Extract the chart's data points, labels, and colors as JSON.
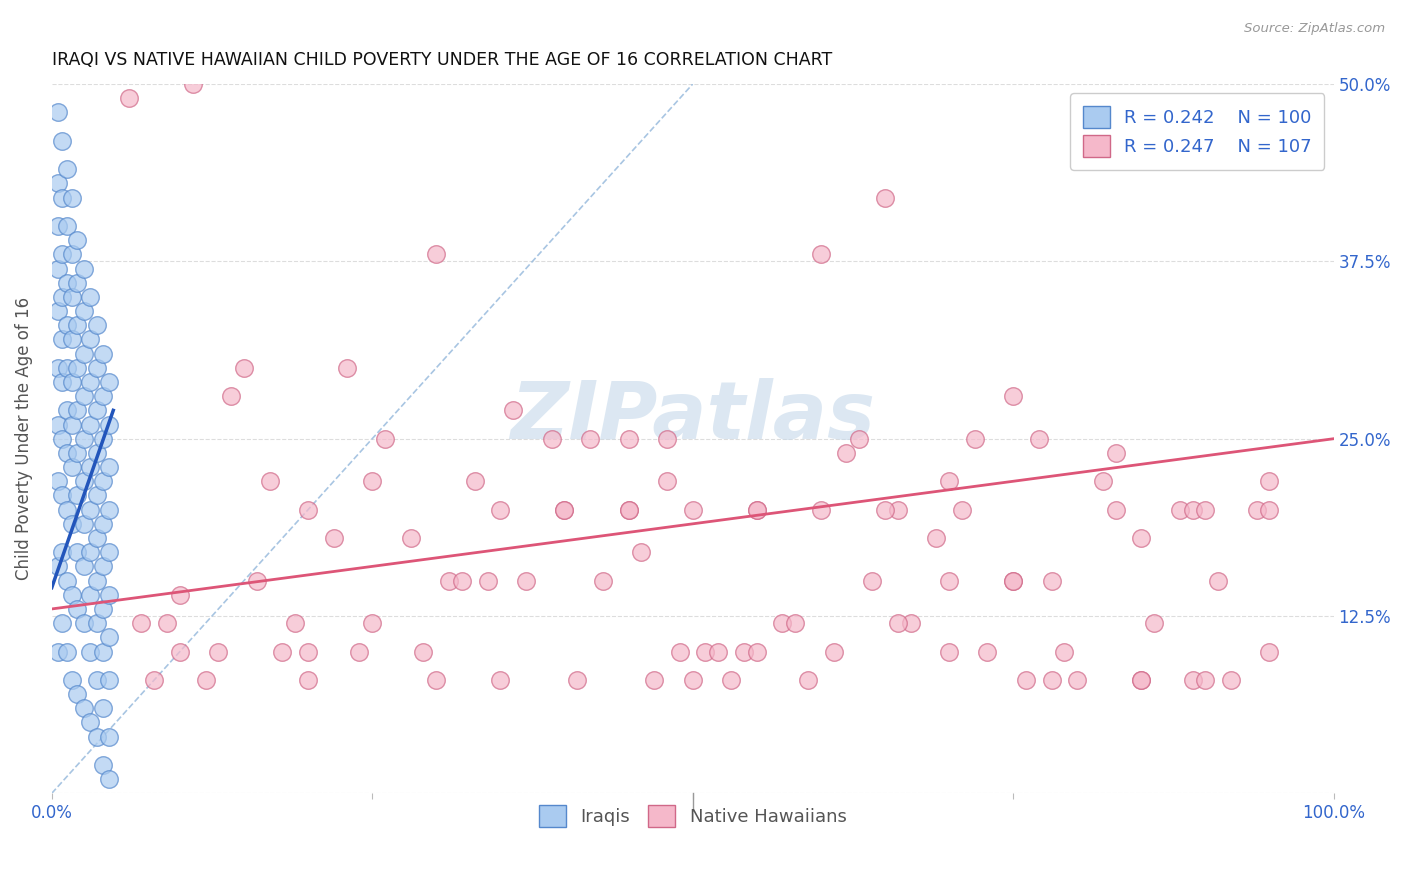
{
  "title": "IRAQI VS NATIVE HAWAIIAN CHILD POVERTY UNDER THE AGE OF 16 CORRELATION CHART",
  "source": "Source: ZipAtlas.com",
  "ylabel": "Child Poverty Under the Age of 16",
  "xlim": [
    0.0,
    1.0
  ],
  "ylim": [
    0.0,
    0.5
  ],
  "ytick_positions": [
    0.0,
    0.125,
    0.25,
    0.375,
    0.5
  ],
  "yticklabels_right": [
    "",
    "12.5%",
    "25.0%",
    "37.5%",
    "50.0%"
  ],
  "iraqis_color": "#aacbf0",
  "iraqis_edge": "#5588cc",
  "hawaiians_color": "#f5b8ca",
  "hawaiians_edge": "#d06888",
  "iraqis_line_color": "#2255bb",
  "hawaiians_line_color": "#dd5577",
  "diagonal_color": "#99bbdd",
  "watermark_color": "#c5d8ea",
  "legend_iraqis_R": "0.242",
  "legend_iraqis_N": "100",
  "legend_hawaiians_R": "0.247",
  "legend_hawaiians_N": "107",
  "title_color": "#111111",
  "axis_label_color": "#555555",
  "tick_color": "#3366cc",
  "grid_color": "#dddddd",
  "iraqis_x": [
    0.005,
    0.005,
    0.005,
    0.005,
    0.005,
    0.005,
    0.005,
    0.005,
    0.005,
    0.005,
    0.008,
    0.008,
    0.008,
    0.008,
    0.008,
    0.008,
    0.008,
    0.008,
    0.008,
    0.008,
    0.012,
    0.012,
    0.012,
    0.012,
    0.012,
    0.012,
    0.012,
    0.012,
    0.012,
    0.012,
    0.016,
    0.016,
    0.016,
    0.016,
    0.016,
    0.016,
    0.016,
    0.016,
    0.016,
    0.016,
    0.02,
    0.02,
    0.02,
    0.02,
    0.02,
    0.02,
    0.02,
    0.02,
    0.02,
    0.02,
    0.025,
    0.025,
    0.025,
    0.025,
    0.025,
    0.025,
    0.025,
    0.025,
    0.025,
    0.025,
    0.03,
    0.03,
    0.03,
    0.03,
    0.03,
    0.03,
    0.03,
    0.03,
    0.03,
    0.03,
    0.035,
    0.035,
    0.035,
    0.035,
    0.035,
    0.035,
    0.035,
    0.035,
    0.035,
    0.035,
    0.04,
    0.04,
    0.04,
    0.04,
    0.04,
    0.04,
    0.04,
    0.04,
    0.04,
    0.04,
    0.045,
    0.045,
    0.045,
    0.045,
    0.045,
    0.045,
    0.045,
    0.045,
    0.045,
    0.045
  ],
  "iraqis_y": [
    0.48,
    0.43,
    0.4,
    0.37,
    0.34,
    0.3,
    0.26,
    0.22,
    0.16,
    0.1,
    0.46,
    0.42,
    0.38,
    0.35,
    0.32,
    0.29,
    0.25,
    0.21,
    0.17,
    0.12,
    0.44,
    0.4,
    0.36,
    0.33,
    0.3,
    0.27,
    0.24,
    0.2,
    0.15,
    0.1,
    0.42,
    0.38,
    0.35,
    0.32,
    0.29,
    0.26,
    0.23,
    0.19,
    0.14,
    0.08,
    0.39,
    0.36,
    0.33,
    0.3,
    0.27,
    0.24,
    0.21,
    0.17,
    0.13,
    0.07,
    0.37,
    0.34,
    0.31,
    0.28,
    0.25,
    0.22,
    0.19,
    0.16,
    0.12,
    0.06,
    0.35,
    0.32,
    0.29,
    0.26,
    0.23,
    0.2,
    0.17,
    0.14,
    0.1,
    0.05,
    0.33,
    0.3,
    0.27,
    0.24,
    0.21,
    0.18,
    0.15,
    0.12,
    0.08,
    0.04,
    0.31,
    0.28,
    0.25,
    0.22,
    0.19,
    0.16,
    0.13,
    0.1,
    0.06,
    0.02,
    0.29,
    0.26,
    0.23,
    0.2,
    0.17,
    0.14,
    0.11,
    0.08,
    0.04,
    0.01
  ],
  "hawaiians_x": [
    0.06,
    0.09,
    0.11,
    0.14,
    0.17,
    0.2,
    0.23,
    0.26,
    0.3,
    0.33,
    0.36,
    0.39,
    0.42,
    0.45,
    0.48,
    0.51,
    0.54,
    0.57,
    0.6,
    0.63,
    0.66,
    0.69,
    0.72,
    0.75,
    0.78,
    0.82,
    0.85,
    0.88,
    0.91,
    0.94,
    0.07,
    0.1,
    0.13,
    0.16,
    0.19,
    0.22,
    0.25,
    0.28,
    0.31,
    0.34,
    0.37,
    0.4,
    0.43,
    0.46,
    0.49,
    0.52,
    0.55,
    0.58,
    0.61,
    0.64,
    0.67,
    0.7,
    0.73,
    0.76,
    0.79,
    0.83,
    0.86,
    0.89,
    0.92,
    0.95,
    0.08,
    0.12,
    0.18,
    0.24,
    0.29,
    0.35,
    0.41,
    0.47,
    0.53,
    0.59,
    0.65,
    0.71,
    0.77,
    0.83,
    0.89,
    0.95,
    0.15,
    0.25,
    0.35,
    0.45,
    0.55,
    0.65,
    0.75,
    0.85,
    0.5,
    0.6,
    0.7,
    0.8,
    0.9,
    0.4,
    0.2,
    0.3,
    0.5,
    0.7,
    0.9,
    0.1,
    0.2,
    0.48,
    0.62,
    0.75,
    0.85,
    0.55,
    0.45,
    0.32,
    0.78,
    0.66,
    0.95
  ],
  "hawaiians_y": [
    0.49,
    0.12,
    0.5,
    0.28,
    0.22,
    0.2,
    0.3,
    0.25,
    0.38,
    0.22,
    0.27,
    0.25,
    0.25,
    0.25,
    0.22,
    0.1,
    0.1,
    0.12,
    0.38,
    0.25,
    0.2,
    0.18,
    0.25,
    0.28,
    0.15,
    0.22,
    0.18,
    0.2,
    0.15,
    0.2,
    0.12,
    0.1,
    0.1,
    0.15,
    0.12,
    0.18,
    0.12,
    0.18,
    0.15,
    0.15,
    0.15,
    0.2,
    0.15,
    0.17,
    0.1,
    0.1,
    0.1,
    0.12,
    0.1,
    0.15,
    0.12,
    0.1,
    0.1,
    0.08,
    0.1,
    0.2,
    0.12,
    0.08,
    0.08,
    0.1,
    0.08,
    0.08,
    0.1,
    0.1,
    0.1,
    0.08,
    0.08,
    0.08,
    0.08,
    0.08,
    0.42,
    0.2,
    0.25,
    0.24,
    0.2,
    0.22,
    0.3,
    0.22,
    0.2,
    0.2,
    0.2,
    0.2,
    0.15,
    0.08,
    0.2,
    0.2,
    0.15,
    0.08,
    0.2,
    0.2,
    0.08,
    0.08,
    0.08,
    0.22,
    0.08,
    0.14,
    0.1,
    0.25,
    0.24,
    0.15,
    0.08,
    0.2,
    0.2,
    0.15,
    0.08,
    0.12,
    0.2
  ],
  "iraqis_line_x": [
    0.0,
    0.048
  ],
  "iraqis_line_y": [
    0.145,
    0.27
  ],
  "hawaiians_line_x": [
    0.0,
    1.0
  ],
  "hawaiians_line_y": [
    0.13,
    0.25
  ]
}
